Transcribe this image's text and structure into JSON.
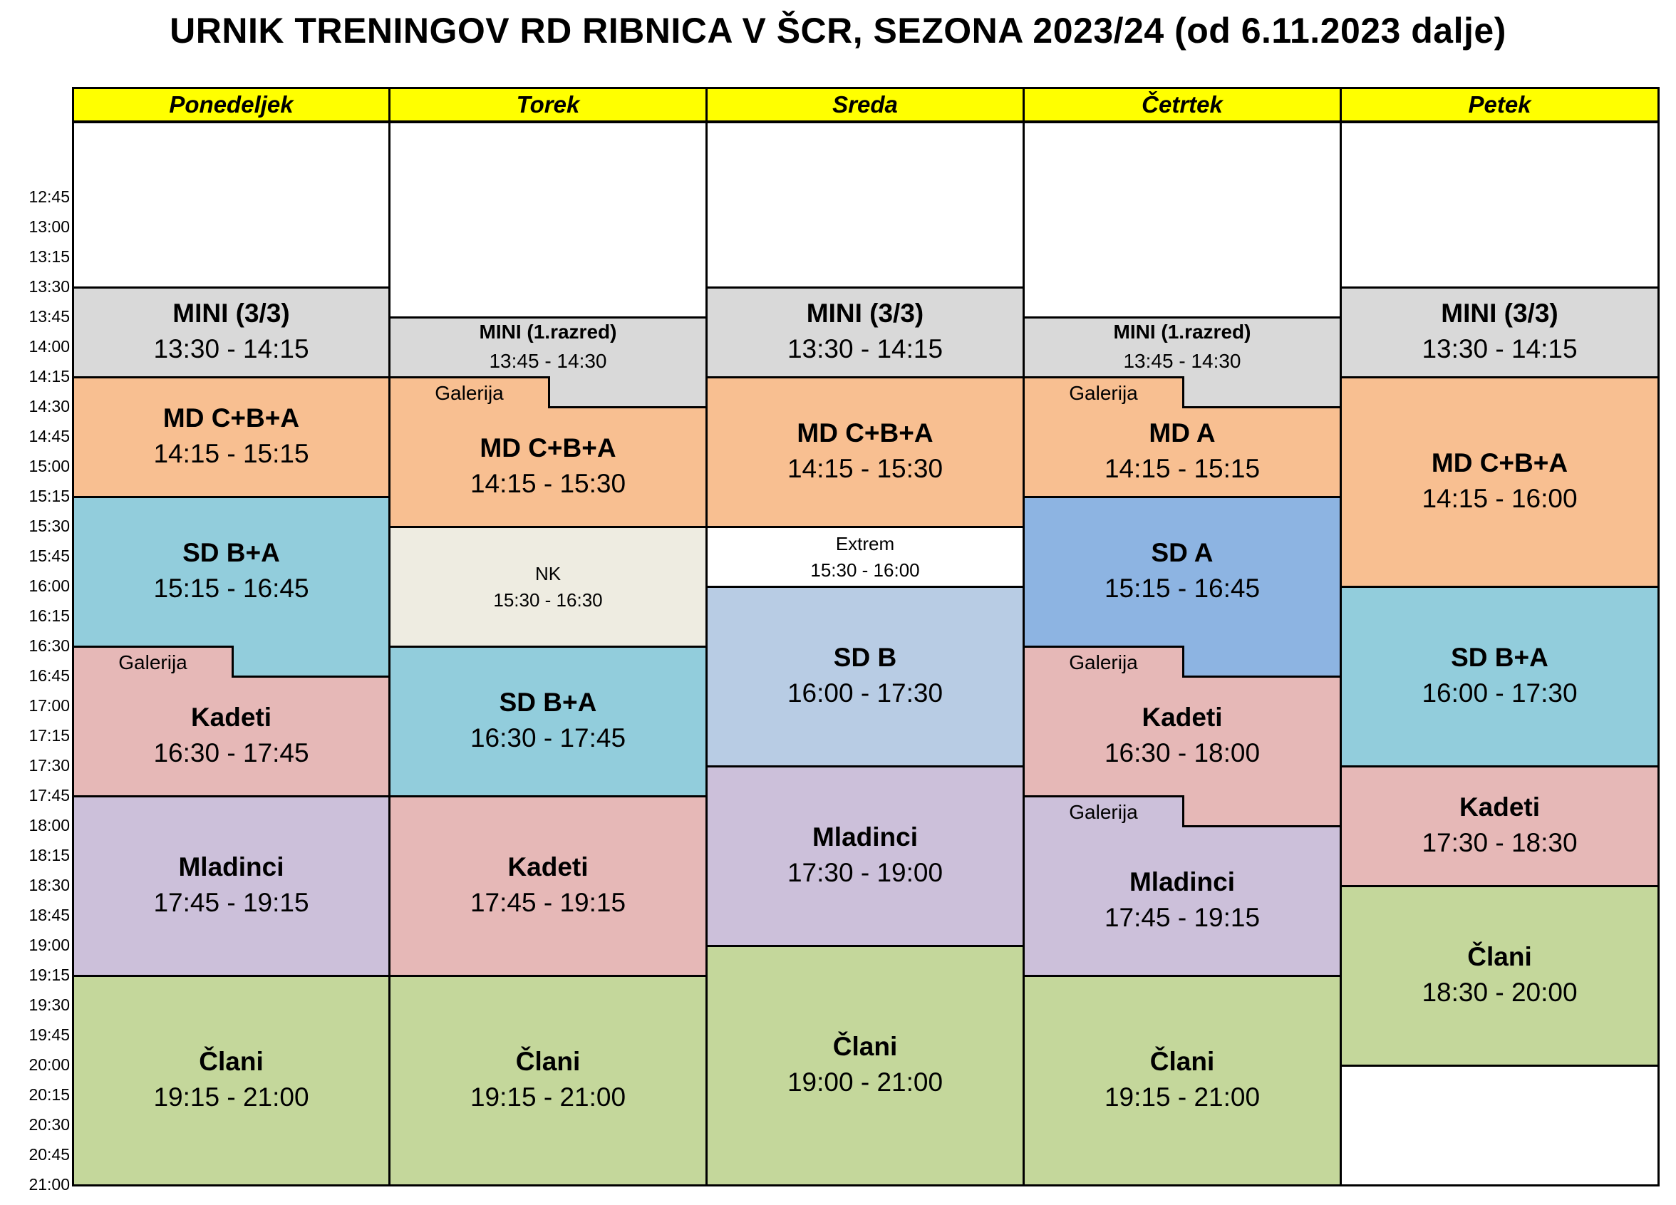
{
  "title": "URNIK TRENINGOV RD RIBNICA V ŠCR, SEZONA 2023/24 (od 6.11.2023 dalje)",
  "times": [
    "12:45",
    "13:00",
    "13:15",
    "13:30",
    "13:45",
    "14:00",
    "14:15",
    "14:30",
    "14:45",
    "15:00",
    "15:15",
    "15:30",
    "15:45",
    "16:00",
    "16:15",
    "16:30",
    "16:45",
    "17:00",
    "17:15",
    "17:30",
    "17:45",
    "18:00",
    "18:15",
    "18:30",
    "18:45",
    "19:00",
    "19:15",
    "19:30",
    "19:45",
    "20:00",
    "20:15",
    "20:30",
    "20:45",
    "21:00"
  ],
  "days": [
    {
      "name": "Ponedeljek",
      "blocks": [
        {
          "name": "MINI (3/3)",
          "time": "13:30 - 14:15",
          "color": "#d9d9d9"
        },
        {
          "name": "MD C+B+A",
          "time": "14:15 - 15:15",
          "color": "#f8bf91"
        },
        {
          "name": "SD B+A",
          "time": "15:15 - 16:45",
          "color": "#92cddc"
        },
        {
          "name": "Kadeti",
          "time": "16:30 - 17:45",
          "color": "#e6b8b7",
          "note": "Galerija"
        },
        {
          "name": "Mladinci",
          "time": "17:45 - 19:15",
          "color": "#ccc0da"
        },
        {
          "name": "Člani",
          "time": "19:15 - 21:00",
          "color": "#c4d79b"
        }
      ]
    },
    {
      "name": "Torek",
      "blocks": [
        {
          "name": "MINI (1.razred)",
          "time": "13:45 - 14:30",
          "color": "#d9d9d9"
        },
        {
          "name": "MD C+B+A",
          "time": "14:15 - 15:30",
          "color": "#f8bf91",
          "note": "Galerija"
        },
        {
          "name": "NK",
          "time": "15:30 - 16:30",
          "color": "#eeece1"
        },
        {
          "name": "SD B+A",
          "time": "16:30 - 17:45",
          "color": "#92cddc"
        },
        {
          "name": "Kadeti",
          "time": "17:45 - 19:15",
          "color": "#e6b8b7"
        },
        {
          "name": "Člani",
          "time": "19:15 - 21:00",
          "color": "#c4d79b"
        }
      ]
    },
    {
      "name": "Sreda",
      "blocks": [
        {
          "name": "MINI (3/3)",
          "time": "13:30 - 14:15",
          "color": "#d9d9d9"
        },
        {
          "name": "MD C+B+A",
          "time": "14:15 - 15:30",
          "color": "#f8bf91"
        },
        {
          "name": "Extrem",
          "time": "15:30 - 16:00",
          "color": "#ffffff"
        },
        {
          "name": "SD B",
          "time": "16:00 - 17:30",
          "color": "#b8cce4"
        },
        {
          "name": "Mladinci",
          "time": "17:30 - 19:00",
          "color": "#ccc0da"
        },
        {
          "name": "Člani",
          "time": "19:00 - 21:00",
          "color": "#c4d79b"
        }
      ]
    },
    {
      "name": "Četrtek",
      "blocks": [
        {
          "name": "MINI (1.razred)",
          "time": "13:45 - 14:30",
          "color": "#d9d9d9"
        },
        {
          "name": "MD A",
          "time": "14:15 - 15:15",
          "color": "#f8bf91",
          "note": "Galerija"
        },
        {
          "name": "SD A",
          "time": "15:15 - 16:45",
          "color": "#8db4e2"
        },
        {
          "name": "Kadeti",
          "time": "16:30 - 18:00",
          "color": "#e6b8b7",
          "note": "Galerija"
        },
        {
          "name": "Mladinci",
          "time": "17:45 - 19:15",
          "color": "#ccc0da",
          "note": "Galerija"
        },
        {
          "name": "Člani",
          "time": "19:15 - 21:00",
          "color": "#c4d79b"
        }
      ]
    },
    {
      "name": "Petek",
      "blocks": [
        {
          "name": "MINI (3/3)",
          "time": "13:30 - 14:15",
          "color": "#d9d9d9"
        },
        {
          "name": "MD C+B+A",
          "time": "14:15 - 16:00",
          "color": "#f8bf91"
        },
        {
          "name": "SD B+A",
          "time": "16:00 - 17:30",
          "color": "#92cddc"
        },
        {
          "name": "Kadeti",
          "time": "17:30 - 18:30",
          "color": "#e6b8b7"
        },
        {
          "name": "Člani",
          "time": "18:30 - 20:00",
          "color": "#c4d79b"
        }
      ]
    }
  ]
}
